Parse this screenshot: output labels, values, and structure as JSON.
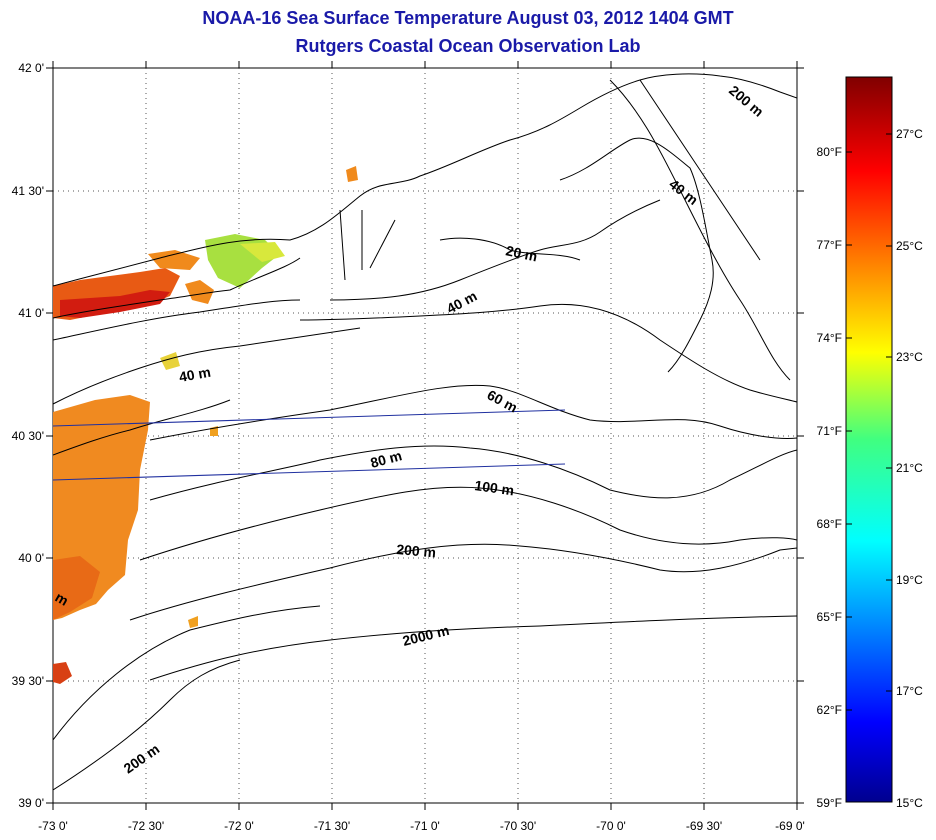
{
  "title": "NOAA-16 Sea Surface Temperature August 03, 2012 1404 GMT",
  "subtitle": "Rutgers Coastal Ocean Observation Lab",
  "map": {
    "lat_labels": [
      "42 0'",
      "41 30'",
      "41 0'",
      "40 30'",
      "40 0'",
      "39 30'",
      "39 0'"
    ],
    "lon_labels": [
      "-73 0'",
      "-72 30'",
      "-72 0'",
      "-71 30'",
      "-71 0'",
      "-70 30'",
      "-70 0'",
      "-69 30'",
      "-69 0'"
    ],
    "contour_labels": [
      {
        "text": "200 m",
        "angle": 40
      },
      {
        "text": "40 m",
        "angle": 38
      },
      {
        "text": "20 m",
        "angle": 12
      },
      {
        "text": "40 m",
        "angle": -28
      },
      {
        "text": "40 m",
        "angle": -10
      },
      {
        "text": "60 m",
        "angle": 28
      },
      {
        "text": "80 m",
        "angle": -15
      },
      {
        "text": "100 m",
        "angle": 8
      },
      {
        "text": "200 m",
        "angle": 5
      },
      {
        "text": "2000 m",
        "angle": -14
      },
      {
        "text": "200 m",
        "angle": -35
      },
      {
        "text": "m",
        "angle": 30
      }
    ]
  },
  "colorbar": {
    "celsius_labels": [
      "27°C",
      "25°C",
      "23°C",
      "21°C",
      "19°C",
      "17°C",
      "15°C"
    ],
    "fahrenheit_labels": [
      "80°F",
      "77°F",
      "74°F",
      "71°F",
      "68°F",
      "65°F",
      "62°F",
      "59°F"
    ],
    "min_c": 15,
    "max_c": 28.5
  },
  "colors": {
    "title": "#1a1aa8",
    "warm_sst": "#f07818",
    "hot_sst": "#d82010",
    "mild_sst": "#a8e040",
    "track_line": "#2030a0"
  }
}
